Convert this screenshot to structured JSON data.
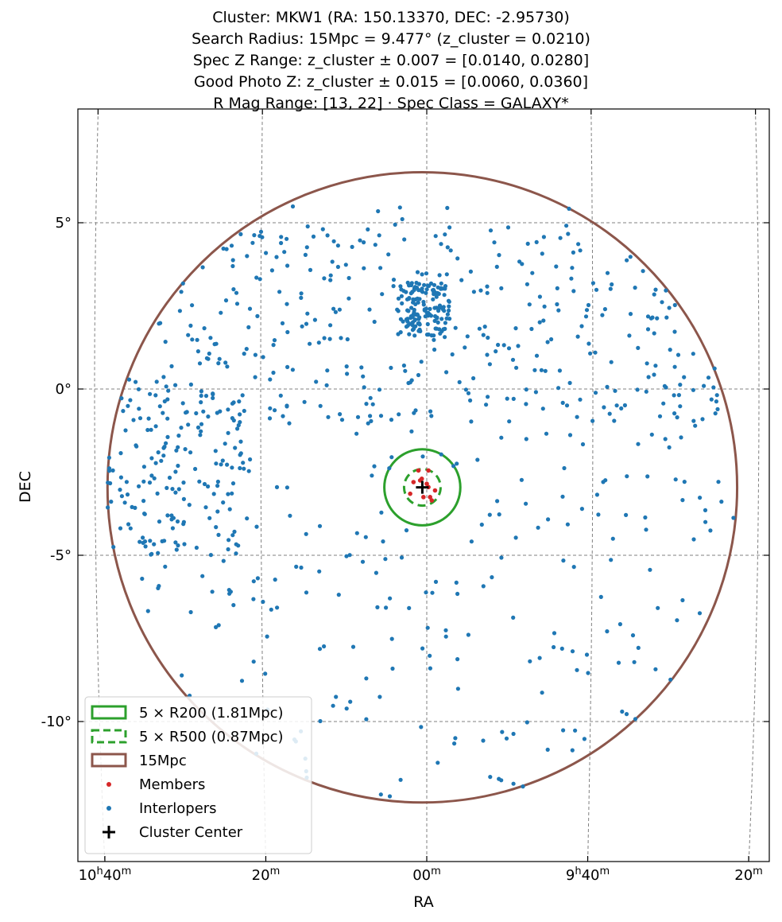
{
  "title_lines": [
    "Cluster: MKW1 (RA: 150.13370, DEC: -2.95730)",
    "Search Radius: 15Mpc = 9.477° (z_cluster = 0.0210)",
    "Spec Z Range: z_cluster ± 0.007 = [0.0140, 0.0280]",
    "Good Photo Z: z_cluster ± 0.015 = [0.0060, 0.0360]",
    "R Mag Range: [13, 22] · Spec Class = GALAXY*"
  ],
  "colors": {
    "r200": "#2ca02c",
    "r500": "#2ca02c",
    "search": "#8c564b",
    "members": "#d62728",
    "interlopers": "#1f77b4",
    "center": "#000000",
    "grid": "#808080"
  },
  "chart_data": {
    "type": "scatter",
    "projection": "sky (RA/DEC)",
    "xlabel": "RA",
    "ylabel": "DEC",
    "xlim_deg": [
      161.2,
      139.6
    ],
    "ylim_deg": [
      -14.3,
      8.3
    ],
    "x_ticks": [
      {
        "label_h": "10",
        "label_m": "40",
        "ra_deg": 160.0
      },
      {
        "label_h": "",
        "label_m": "20",
        "ra_deg": 155.0
      },
      {
        "label_h": "",
        "label_m": "00",
        "ra_deg": 150.0
      },
      {
        "label_h": "9",
        "label_m": "40",
        "ra_deg": 145.0
      },
      {
        "label_h": "",
        "label_m": "20",
        "ra_deg": 140.0
      }
    ],
    "y_ticks": [
      {
        "label": "5°",
        "dec_deg": 5
      },
      {
        "label": "0°",
        "dec_deg": 0
      },
      {
        "label": "-5°",
        "dec_deg": -5
      },
      {
        "label": "-10°",
        "dec_deg": -10
      }
    ],
    "grid": true,
    "legend_position": "lower-left",
    "center": {
      "ra": 150.1337,
      "dec": -2.9573
    },
    "circles": [
      {
        "name": "5 × R200 (1.81Mpc)",
        "radius_deg": 1.144,
        "style": "solid"
      },
      {
        "name": "5 × R500 (0.87Mpc)",
        "radius_deg": 0.55,
        "style": "dashed"
      },
      {
        "name": "15Mpc",
        "radius_deg": 9.477,
        "style": "solid"
      }
    ],
    "series": [
      {
        "name": "Members",
        "points": [
          [
            150.25,
            -2.45
          ],
          [
            149.95,
            -2.45
          ],
          [
            150.4,
            -2.8
          ],
          [
            150.2,
            -2.75
          ],
          [
            149.95,
            -2.95
          ],
          [
            150.5,
            -3.15
          ],
          [
            150.1,
            -3.25
          ],
          [
            149.85,
            -3.35
          ],
          [
            150.0,
            -2.85
          ],
          [
            149.75,
            -3.05
          ],
          [
            150.15,
            -2.7
          ],
          [
            149.9,
            -3.25
          ]
        ]
      },
      {
        "name": "Interlopers",
        "points": []
      },
      {
        "name": "Cluster Center",
        "points": [
          [
            150.1337,
            -2.9573
          ]
        ]
      }
    ]
  },
  "legend": [
    {
      "label": "5 × R200 (1.81Mpc)",
      "kind": "box-solid",
      "color": "#2ca02c"
    },
    {
      "label": "5 × R500 (0.87Mpc)",
      "kind": "box-dashed",
      "color": "#2ca02c"
    },
    {
      "label": "15Mpc",
      "kind": "box-solid",
      "color": "#8c564b"
    },
    {
      "label": "Members",
      "kind": "dot",
      "color": "#d62728"
    },
    {
      "label": "Interlopers",
      "kind": "dot",
      "color": "#1f77b4"
    },
    {
      "label": "Cluster Center",
      "kind": "plus",
      "color": "#000000"
    }
  ]
}
